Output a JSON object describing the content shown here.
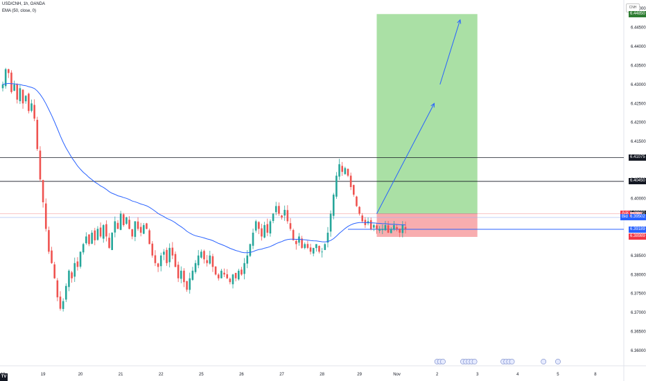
{
  "header": {
    "symbol_line": "USD/CNH, 1h, OANDA",
    "indicator_line": "EMA (50, close, 0)"
  },
  "currency_label": "CNH",
  "chart_data": {
    "type": "candlestick",
    "symbol": "USD/CNH",
    "timeframe": "1h",
    "source": "OANDA",
    "ylim": [
      6.356,
      6.4522
    ],
    "y_ticks": [
      "6.36000",
      "6.36500",
      "6.37000",
      "6.37500",
      "6.38000",
      "6.38500",
      "6.39000",
      "6.40000",
      "6.40500",
      "6.41500",
      "6.42000",
      "6.42500",
      "6.43000",
      "6.43500",
      "6.44000",
      "6.44500",
      "6.45000"
    ],
    "x_ticks": [
      {
        "label": "18",
        "pos": 0
      },
      {
        "label": "19",
        "pos": 14
      },
      {
        "label": "20",
        "pos": 27
      },
      {
        "label": "21",
        "pos": 41
      },
      {
        "label": "22",
        "pos": 55
      },
      {
        "label": "25",
        "pos": 69
      },
      {
        "label": "26",
        "pos": 83
      },
      {
        "label": "27",
        "pos": 97
      },
      {
        "label": "28",
        "pos": 111
      },
      {
        "label": "29",
        "pos": 124
      },
      {
        "label": "Nov",
        "pos": 137
      },
      {
        "label": "2",
        "pos": 151
      },
      {
        "label": "3",
        "pos": 165
      },
      {
        "label": "4",
        "pos": 179
      },
      {
        "label": "5",
        "pos": 193
      },
      {
        "label": "8",
        "pos": 206
      }
    ],
    "closes": [
      6.43,
      6.434,
      6.433,
      6.428,
      6.43,
      6.426,
      6.429,
      6.425,
      6.427,
      6.423,
      6.425,
      6.421,
      6.413,
      6.405,
      6.399,
      6.392,
      6.386,
      6.383,
      6.379,
      6.374,
      6.371,
      6.373,
      6.377,
      6.381,
      6.379,
      6.383,
      6.382,
      6.386,
      6.388,
      6.39,
      6.388,
      6.391,
      6.389,
      6.392,
      6.39,
      6.393,
      6.39,
      6.387,
      6.391,
      6.394,
      6.392,
      6.396,
      6.393,
      6.395,
      6.392,
      6.39,
      6.394,
      6.392,
      6.391,
      6.393,
      6.392,
      6.388,
      6.385,
      6.383,
      6.382,
      6.385,
      6.386,
      6.383,
      6.387,
      6.385,
      6.382,
      6.379,
      6.381,
      6.378,
      6.376,
      6.379,
      6.381,
      6.383,
      6.385,
      6.386,
      6.384,
      6.383,
      6.385,
      6.382,
      6.38,
      6.379,
      6.381,
      6.38,
      6.379,
      6.378,
      6.38,
      6.379,
      6.381,
      6.38,
      6.383,
      6.385,
      6.388,
      6.391,
      6.394,
      6.392,
      6.39,
      6.393,
      6.391,
      6.394,
      6.396,
      6.398,
      6.396,
      6.395,
      6.397,
      6.394,
      6.392,
      6.389,
      6.388,
      6.39,
      6.387,
      6.388,
      6.387,
      6.386,
      6.387,
      6.388,
      6.386,
      6.386,
      6.388,
      6.391,
      6.396,
      6.401,
      6.406,
      6.409,
      6.407,
      6.408,
      6.406,
      6.403,
      6.401,
      6.398,
      6.396,
      6.394,
      6.393,
      6.394,
      6.392,
      6.393,
      6.392,
      6.392,
      6.392,
      6.393,
      6.391,
      6.392,
      6.393,
      6.392,
      6.391,
      6.393,
      6.392
    ],
    "ema": {
      "name": "EMA (50, close, 0)",
      "period": 50
    },
    "horizontal_lines": [
      6.41075,
      6.4045,
      6.39189
    ],
    "position": {
      "entry": 6.396,
      "target": 6.4485,
      "stop": 6.38989,
      "start_pos": 130,
      "end_pos": 165
    },
    "arrow": [
      [
        130,
        6.396
      ],
      [
        150,
        6.425
      ],
      [
        152,
        6.43
      ],
      [
        159,
        6.447
      ]
    ],
    "price_labels": [
      {
        "text": "6.44850",
        "value": 6.4485,
        "color": "#2e7d32"
      },
      {
        "text": "6.41075",
        "value": 6.41075,
        "color": "#131722"
      },
      {
        "text": "6.40450",
        "value": 6.4045,
        "color": "#131722"
      },
      {
        "text": "6.39607",
        "value": 6.39607,
        "color": "#f23645"
      },
      {
        "text": "6.39600",
        "value": 6.396,
        "color": "#131722"
      },
      {
        "text": "11:20",
        "value": 6.3956,
        "color": "#f4a3a3"
      },
      {
        "text": "6.39502",
        "value": 6.39502,
        "color": "#2962ff"
      },
      {
        "text": "6.39189",
        "value": 6.39189,
        "color": "#2962ff"
      },
      {
        "text": "6.38989",
        "value": 6.38989,
        "color": "#f23645"
      }
    ],
    "ask_label": "Ask",
    "bid_label": "Bid"
  },
  "colors": {
    "up": "#26a69a",
    "down": "#ef5350",
    "ema": "#2962ff",
    "profit": "#a5dea0",
    "loss": "#f8a9ab",
    "line": "#131722"
  }
}
